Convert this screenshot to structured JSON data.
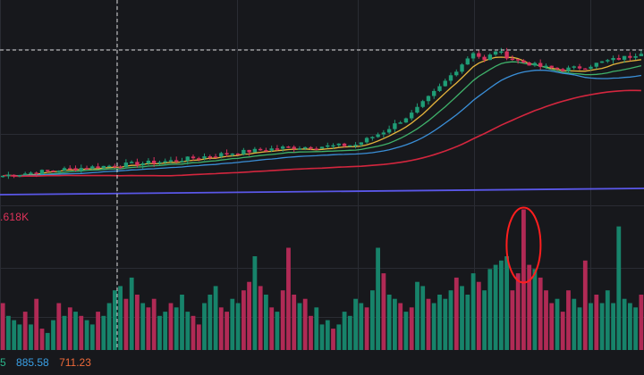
{
  "colors": {
    "background": "#17181c",
    "grid": "#2a2c33",
    "up": "#1f9d76",
    "down": "#d4315d",
    "volume_up": "#17836a",
    "volume_down": "#b02a55",
    "ma_yellow": "#e5b43c",
    "ma_green": "#3fb26b",
    "ma_blue": "#3a8fd8",
    "ma_red": "#d3263e",
    "ma_indigo": "#5a57e8",
    "crosshair": "#d8d8d8",
    "highlight": "#ff1e1e"
  },
  "volume_panel": {
    "label": ".618K"
  },
  "ma_readout": [
    {
      "text": "5",
      "color": "#2bb58a"
    },
    {
      "text": "885.58",
      "color": "#3aa0e6"
    },
    {
      "text": "711.23",
      "color": "#ef6a3a"
    }
  ],
  "chart_data": {
    "type": "candlestick",
    "price": {
      "candles_count": 115,
      "close_path": [
        [
          0,
          100
        ],
        [
          10,
          104
        ],
        [
          20,
          107
        ],
        [
          30,
          110
        ],
        [
          40,
          115
        ],
        [
          50,
          119
        ],
        [
          58,
          120
        ],
        [
          63,
          121
        ],
        [
          68,
          130
        ],
        [
          73,
          142
        ],
        [
          78,
          160
        ],
        [
          81,
          172
        ],
        [
          84,
          184
        ],
        [
          86,
          178
        ],
        [
          88,
          185
        ],
        [
          90,
          181
        ],
        [
          92,
          178
        ],
        [
          96,
          174
        ],
        [
          100,
          172
        ],
        [
          104,
          174
        ],
        [
          108,
          178
        ],
        [
          112,
          181
        ],
        [
          114,
          184
        ]
      ],
      "moving_averages": [
        "ma_yellow",
        "ma_green",
        "ma_blue",
        "ma_red",
        "ma_indigo"
      ],
      "crosshair_price_line": true,
      "crosshair_time_line": true
    },
    "volume": {
      "bars": [
        [
          55,
          1
        ],
        [
          40,
          0
        ],
        [
          35,
          0
        ],
        [
          30,
          0
        ],
        [
          45,
          1
        ],
        [
          30,
          0
        ],
        [
          60,
          1
        ],
        [
          25,
          1
        ],
        [
          20,
          0
        ],
        [
          35,
          0
        ],
        [
          55,
          1
        ],
        [
          40,
          0
        ],
        [
          50,
          1
        ],
        [
          45,
          0
        ],
        [
          40,
          1
        ],
        [
          35,
          0
        ],
        [
          30,
          0
        ],
        [
          45,
          1
        ],
        [
          40,
          0
        ],
        [
          55,
          0
        ],
        [
          70,
          0
        ],
        [
          75,
          0
        ],
        [
          60,
          1
        ],
        [
          85,
          0
        ],
        [
          65,
          1
        ],
        [
          55,
          0
        ],
        [
          50,
          1
        ],
        [
          60,
          1
        ],
        [
          40,
          0
        ],
        [
          45,
          0
        ],
        [
          55,
          1
        ],
        [
          50,
          0
        ],
        [
          65,
          0
        ],
        [
          45,
          0
        ],
        [
          40,
          1
        ],
        [
          30,
          1
        ],
        [
          55,
          0
        ],
        [
          65,
          0
        ],
        [
          75,
          0
        ],
        [
          50,
          1
        ],
        [
          45,
          1
        ],
        [
          60,
          0
        ],
        [
          55,
          0
        ],
        [
          70,
          1
        ],
        [
          80,
          1
        ],
        [
          110,
          0
        ],
        [
          75,
          1
        ],
        [
          65,
          0
        ],
        [
          50,
          1
        ],
        [
          45,
          0
        ],
        [
          70,
          1
        ],
        [
          120,
          1
        ],
        [
          65,
          1
        ],
        [
          55,
          0
        ],
        [
          60,
          1
        ],
        [
          40,
          1
        ],
        [
          50,
          0
        ],
        [
          30,
          0
        ],
        [
          35,
          0
        ],
        [
          25,
          1
        ],
        [
          30,
          0
        ],
        [
          45,
          0
        ],
        [
          40,
          0
        ],
        [
          60,
          0
        ],
        [
          55,
          0
        ],
        [
          50,
          1
        ],
        [
          70,
          0
        ],
        [
          120,
          0
        ],
        [
          90,
          1
        ],
        [
          65,
          0
        ],
        [
          60,
          0
        ],
        [
          55,
          1
        ],
        [
          45,
          0
        ],
        [
          50,
          1
        ],
        [
          80,
          0
        ],
        [
          75,
          0
        ],
        [
          60,
          1
        ],
        [
          55,
          0
        ],
        [
          65,
          0
        ],
        [
          60,
          0
        ],
        [
          70,
          0
        ],
        [
          85,
          1
        ],
        [
          75,
          0
        ],
        [
          65,
          0
        ],
        [
          90,
          0
        ],
        [
          80,
          1
        ],
        [
          70,
          0
        ],
        [
          95,
          0
        ],
        [
          100,
          0
        ],
        [
          105,
          0
        ],
        [
          110,
          0
        ],
        [
          70,
          1
        ],
        [
          90,
          1
        ],
        [
          165,
          1
        ],
        [
          100,
          1
        ],
        [
          95,
          0
        ],
        [
          85,
          1
        ],
        [
          70,
          1
        ],
        [
          55,
          1
        ],
        [
          60,
          0
        ],
        [
          45,
          1
        ],
        [
          70,
          1
        ],
        [
          60,
          0
        ],
        [
          50,
          0
        ],
        [
          105,
          1
        ],
        [
          55,
          0
        ],
        [
          65,
          1
        ],
        [
          55,
          0
        ],
        [
          70,
          0
        ],
        [
          55,
          0
        ],
        [
          145,
          0
        ],
        [
          60,
          0
        ],
        [
          55,
          0
        ],
        [
          50,
          0
        ],
        [
          65,
          1
        ]
      ],
      "highlighted_bar_index": 93,
      "volume_axis_max": 175
    },
    "annotations": [
      "circled volume spike"
    ]
  }
}
